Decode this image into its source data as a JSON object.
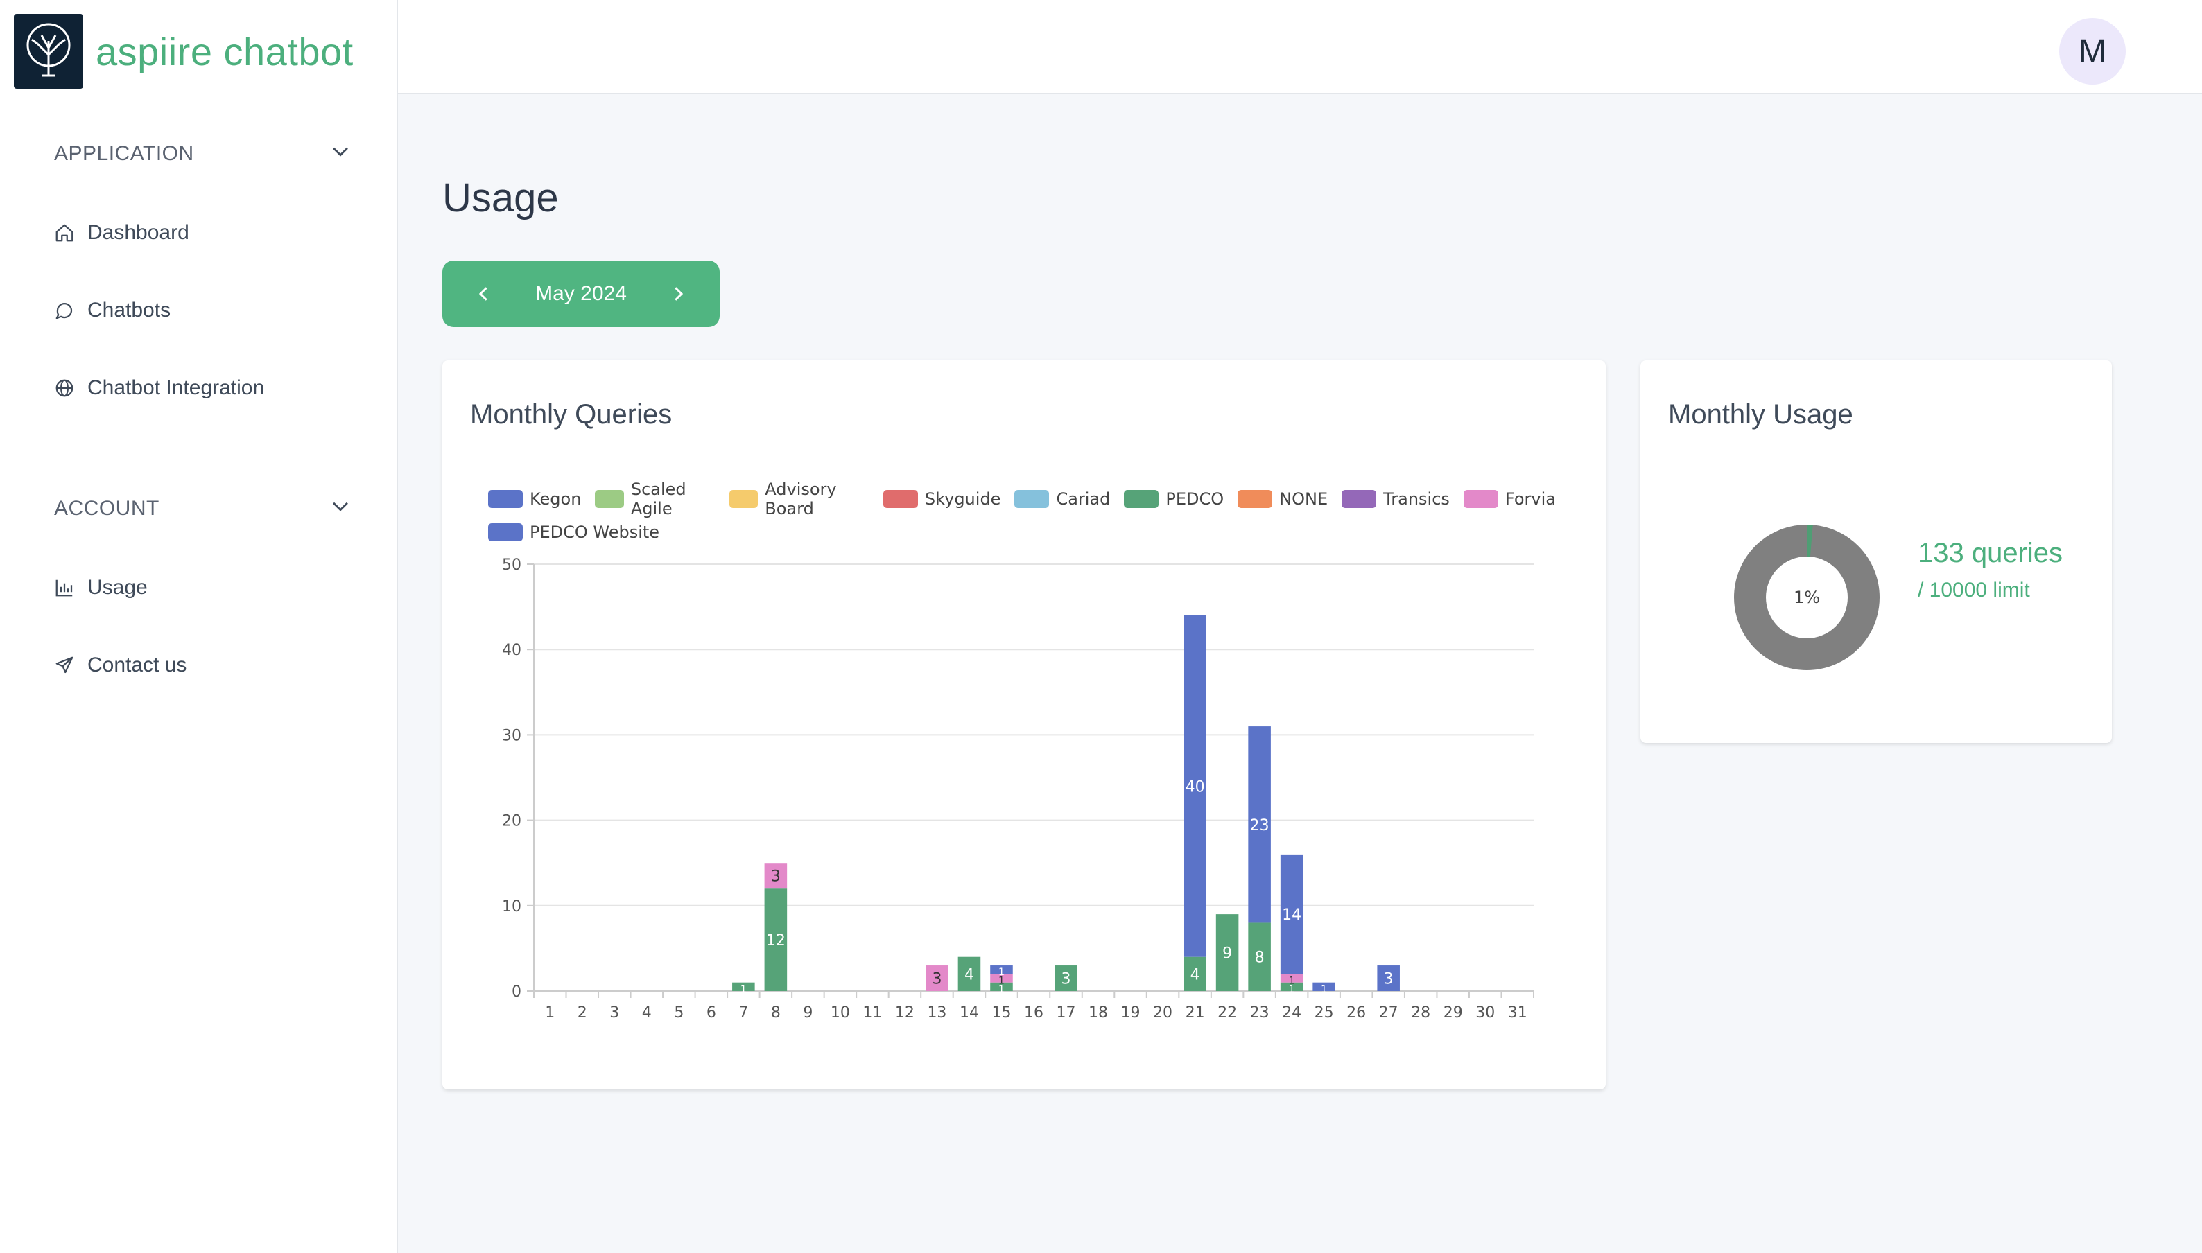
{
  "app": {
    "name": "aspiire chatbot",
    "user_initial": "M"
  },
  "sidebar": {
    "sections": [
      {
        "title": "APPLICATION",
        "items": [
          {
            "label": "Dashboard",
            "icon": "home-icon"
          },
          {
            "label": "Chatbots",
            "icon": "chat-bubble-icon"
          },
          {
            "label": "Chatbot Integration",
            "icon": "globe-icon"
          }
        ]
      },
      {
        "title": "ACCOUNT",
        "items": [
          {
            "label": "Usage",
            "icon": "bar-chart-icon"
          },
          {
            "label": "Contact us",
            "icon": "send-icon"
          }
        ]
      }
    ]
  },
  "page": {
    "title": "Usage",
    "month": "May 2024"
  },
  "monthly_queries": {
    "title": "Monthly Queries"
  },
  "monthly_usage": {
    "title": "Monthly Usage",
    "queries_text": "133 queries",
    "limit_text": "/ 10000 limit",
    "used": 133,
    "limit": 10000,
    "center_label": "1%"
  },
  "colors": {
    "accent": "#50b581",
    "donut_used": "#4f9e74",
    "donut_remaining": "#808080"
  },
  "chart_data": {
    "type": "bar",
    "stacked": true,
    "categories": [
      "1",
      "2",
      "3",
      "4",
      "5",
      "6",
      "7",
      "8",
      "9",
      "10",
      "11",
      "12",
      "13",
      "14",
      "15",
      "16",
      "17",
      "18",
      "19",
      "20",
      "21",
      "22",
      "23",
      "24",
      "25",
      "26",
      "27",
      "28",
      "29",
      "30",
      "31"
    ],
    "ylim": [
      0,
      50
    ],
    "yticks": [
      0,
      10,
      20,
      30,
      40,
      50
    ],
    "grid": true,
    "legend_position": "top",
    "series": [
      {
        "name": "Kegon",
        "color": "#5b73c8",
        "values": [
          0,
          0,
          0,
          0,
          0,
          0,
          0,
          0,
          0,
          0,
          0,
          0,
          0,
          0,
          0,
          0,
          0,
          0,
          0,
          0,
          0,
          0,
          0,
          0,
          0,
          0,
          0,
          0,
          0,
          0,
          0
        ]
      },
      {
        "name": "Scaled Agile",
        "color": "#9ccb84",
        "values": [
          0,
          0,
          0,
          0,
          0,
          0,
          0,
          0,
          0,
          0,
          0,
          0,
          0,
          0,
          0,
          0,
          0,
          0,
          0,
          0,
          0,
          0,
          0,
          0,
          0,
          0,
          0,
          0,
          0,
          0,
          0
        ]
      },
      {
        "name": "Advisory Board",
        "color": "#f5cb6c",
        "values": [
          0,
          0,
          0,
          0,
          0,
          0,
          0,
          0,
          0,
          0,
          0,
          0,
          0,
          0,
          0,
          0,
          0,
          0,
          0,
          0,
          0,
          0,
          0,
          0,
          0,
          0,
          0,
          0,
          0,
          0,
          0
        ]
      },
      {
        "name": "Skyguide",
        "color": "#e06c6c",
        "values": [
          0,
          0,
          0,
          0,
          0,
          0,
          0,
          0,
          0,
          0,
          0,
          0,
          0,
          0,
          0,
          0,
          0,
          0,
          0,
          0,
          0,
          0,
          0,
          0,
          0,
          0,
          0,
          0,
          0,
          0,
          0
        ]
      },
      {
        "name": "Cariad",
        "color": "#85c1dc",
        "values": [
          0,
          0,
          0,
          0,
          0,
          0,
          0,
          0,
          0,
          0,
          0,
          0,
          0,
          0,
          0,
          0,
          0,
          0,
          0,
          0,
          0,
          0,
          0,
          0,
          0,
          0,
          0,
          0,
          0,
          0,
          0
        ]
      },
      {
        "name": "PEDCO",
        "color": "#56a378",
        "values": [
          0,
          0,
          0,
          0,
          0,
          0,
          1,
          12,
          0,
          0,
          0,
          0,
          0,
          4,
          1,
          0,
          3,
          0,
          0,
          0,
          4,
          9,
          8,
          1,
          0,
          0,
          0,
          0,
          0,
          0,
          0
        ]
      },
      {
        "name": "NONE",
        "color": "#f08c5a",
        "values": [
          0,
          0,
          0,
          0,
          0,
          0,
          0,
          0,
          0,
          0,
          0,
          0,
          0,
          0,
          0,
          0,
          0,
          0,
          0,
          0,
          0,
          0,
          0,
          0,
          0,
          0,
          0,
          0,
          0,
          0,
          0
        ]
      },
      {
        "name": "Transics",
        "color": "#9468b8",
        "values": [
          0,
          0,
          0,
          0,
          0,
          0,
          0,
          0,
          0,
          0,
          0,
          0,
          0,
          0,
          0,
          0,
          0,
          0,
          0,
          0,
          0,
          0,
          0,
          0,
          0,
          0,
          0,
          0,
          0,
          0,
          0
        ]
      },
      {
        "name": "Forvia",
        "color": "#e389c9",
        "values": [
          0,
          0,
          0,
          0,
          0,
          0,
          0,
          3,
          0,
          0,
          0,
          0,
          3,
          0,
          1,
          0,
          0,
          0,
          0,
          0,
          0,
          0,
          0,
          1,
          0,
          0,
          0,
          0,
          0,
          0,
          0
        ]
      },
      {
        "name": "PEDCO Website",
        "color": "#5b73c8",
        "values": [
          0,
          0,
          0,
          0,
          0,
          0,
          0,
          0,
          0,
          0,
          0,
          0,
          0,
          0,
          1,
          0,
          0,
          0,
          0,
          0,
          40,
          0,
          23,
          14,
          1,
          0,
          3,
          0,
          0,
          0,
          0
        ]
      }
    ]
  }
}
